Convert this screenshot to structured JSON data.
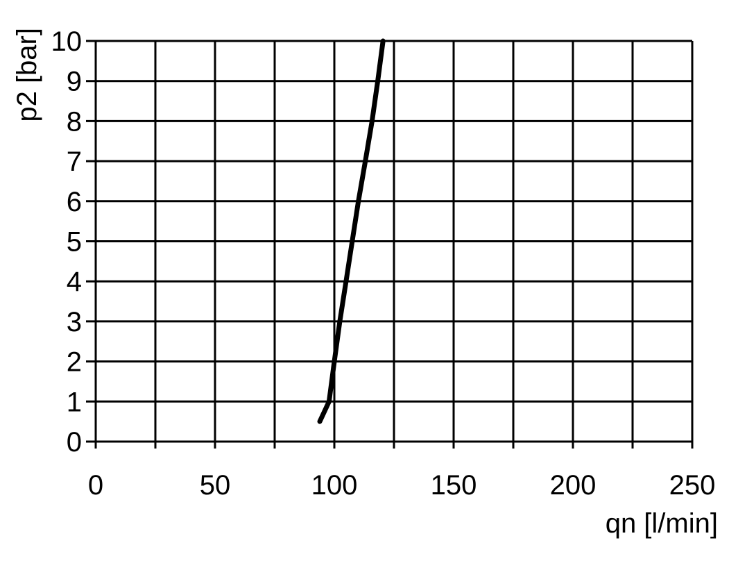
{
  "chart_data": {
    "type": "line",
    "title": "",
    "xlabel": "qn [l/min]",
    "ylabel": "p2 [bar]",
    "xlim": [
      0,
      250
    ],
    "ylim": [
      0,
      10
    ],
    "x_ticks": [
      0,
      50,
      100,
      150,
      200,
      250
    ],
    "y_ticks": [
      0,
      1,
      2,
      3,
      4,
      5,
      6,
      7,
      8,
      9,
      10
    ],
    "x_grid_step": 25,
    "y_grid_step": 1,
    "grid": true,
    "series": [
      {
        "color": "#000000",
        "x": [
          93.9,
          97.8,
          100.0,
          102.3,
          104.9,
          107.5,
          110.1,
          113.0,
          115.8,
          118.2,
          120.4
        ],
        "y": [
          0.5,
          1,
          2,
          3,
          4,
          5,
          6,
          7,
          8,
          9,
          10
        ]
      }
    ]
  }
}
